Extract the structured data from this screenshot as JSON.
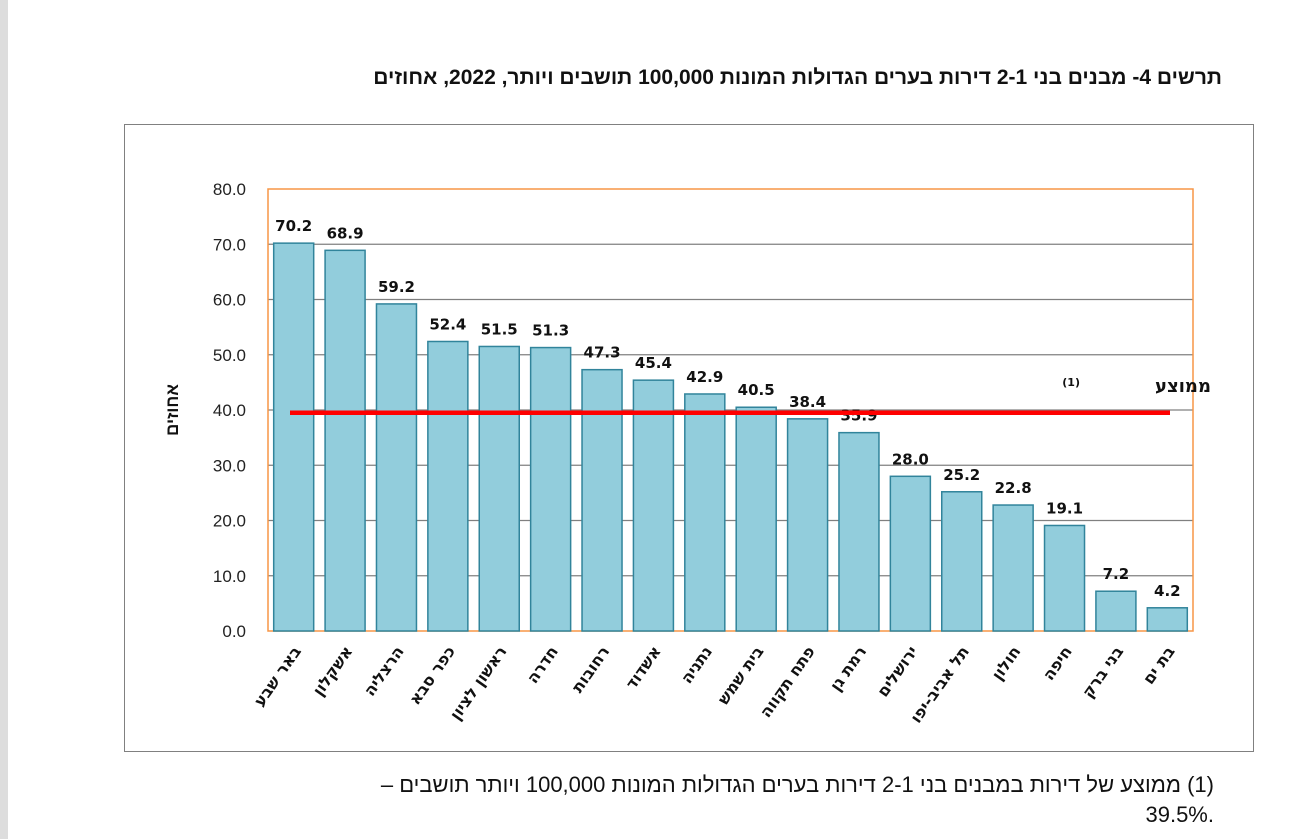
{
  "chart_data": {
    "type": "bar",
    "title": "תרשים 4- מבנים בני 2-1 דירות בערים הגדולות המונות 100,000 תושבים ויותר, 2022, אחוזים",
    "ylabel": "אחוזים",
    "xlabel": "",
    "ylim": [
      0,
      80
    ],
    "yticks": [
      "0.0",
      "10.0",
      "20.0",
      "30.0",
      "40.0",
      "50.0",
      "60.0",
      "70.0",
      "80.0"
    ],
    "grid": true,
    "categories": [
      "באר שבע",
      "אשקלון",
      "הרצליה",
      "כפר סבא",
      "ראשון לציון",
      "חדרה",
      "רחובות",
      "אשדוד",
      "נתניה",
      "בית שמש",
      "פתח תקווה",
      "רמת גן",
      "ירושלים",
      "תל אביב-יפו",
      "חולון",
      "חיפה",
      "בני ברק",
      "בת ים"
    ],
    "values": [
      70.2,
      68.9,
      59.2,
      52.4,
      51.5,
      51.3,
      47.3,
      45.4,
      42.9,
      40.5,
      38.4,
      35.9,
      28.0,
      25.2,
      22.8,
      19.1,
      7.2,
      4.2
    ],
    "average": {
      "value": 39.5,
      "label": "ממוצע",
      "note_marker": "(1)"
    },
    "colors": {
      "bar_fill": "#92cddc",
      "bar_stroke": "#31849b",
      "average_line": "#ff0000",
      "plot_border": "#f79646",
      "grid": "#808080"
    }
  },
  "footnote": {
    "line1": "(1) ממוצע של דירות במבנים בני 2-1 דירות בערים הגדולות המונות 100,000 ויותר תושבים –",
    "line2": ".39.5%"
  }
}
